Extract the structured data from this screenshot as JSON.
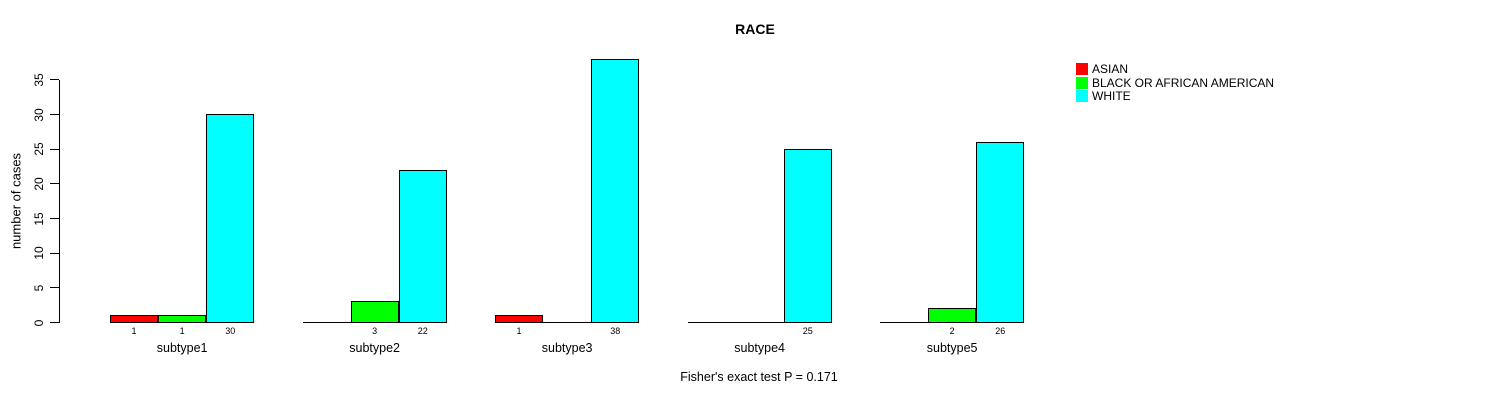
{
  "page": {
    "background_color": "#ffffff"
  },
  "chart_data": {
    "type": "bar",
    "title": "RACE",
    "ylabel": "number of cases",
    "xlabel": "",
    "categories": [
      "subtype1",
      "subtype2",
      "subtype3",
      "subtype4",
      "subtype5"
    ],
    "series": [
      {
        "name": "ASIAN",
        "color": "#ff0000",
        "values": [
          1,
          0,
          1,
          0,
          0
        ]
      },
      {
        "name": "BLACK OR AFRICAN AMERICAN",
        "color": "#00ff00",
        "values": [
          1,
          3,
          0,
          0,
          2
        ]
      },
      {
        "name": "WHITE",
        "color": "#00ffff",
        "values": [
          30,
          22,
          38,
          25,
          26
        ]
      }
    ],
    "value_labels_visible_for_nonzero_only": true,
    "yticks": [
      0,
      5,
      10,
      15,
      20,
      25,
      30,
      35
    ],
    "ylim": [
      0,
      38
    ],
    "grid": false,
    "legend_position": "top-right",
    "bar_border_color": "#000000",
    "caption": "Fisher's exact test P = 0.171"
  }
}
